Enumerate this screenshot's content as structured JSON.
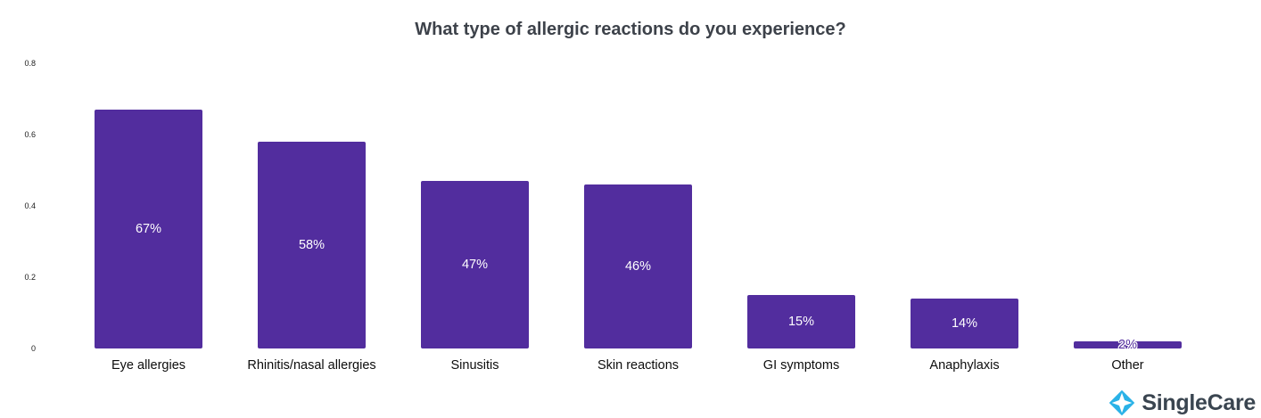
{
  "title": "What type of allergic reactions do you experience?",
  "chart_data": {
    "type": "bar",
    "categories": [
      "Eye allergies",
      "Rhinitis/nasal allergies",
      "Sinusitis",
      "Skin reactions",
      "GI symptoms",
      "Anaphylaxis",
      "Other"
    ],
    "values": [
      67,
      58,
      47,
      46,
      15,
      14,
      2
    ],
    "unit": "percent",
    "value_labels": [
      "67%",
      "58%",
      "47%",
      "46%",
      "15%",
      "14%",
      "2%"
    ],
    "values_fraction": [
      0.67,
      0.58,
      0.47,
      0.46,
      0.15,
      0.14,
      0.02
    ],
    "xlabel": "",
    "ylabel": "",
    "y_ticks": [
      "0",
      "0.2",
      "0.4",
      "0.6",
      "0.8"
    ],
    "ylim": [
      0,
      0.8
    ],
    "grid": false,
    "legend": false,
    "bar_color": "#522D9E",
    "bar_label_color": "#ffffff"
  },
  "branding": {
    "logo_text": "SingleCare",
    "logo_icon": "singlecare-diamond-icon",
    "icon_color": "#2AB2E7",
    "text_color": "#3a4550"
  },
  "colors": {
    "background": "#ffffff",
    "title_text": "#3d424a",
    "category_label": "#0d0d0d",
    "tick_label": "#1c1c1c"
  }
}
